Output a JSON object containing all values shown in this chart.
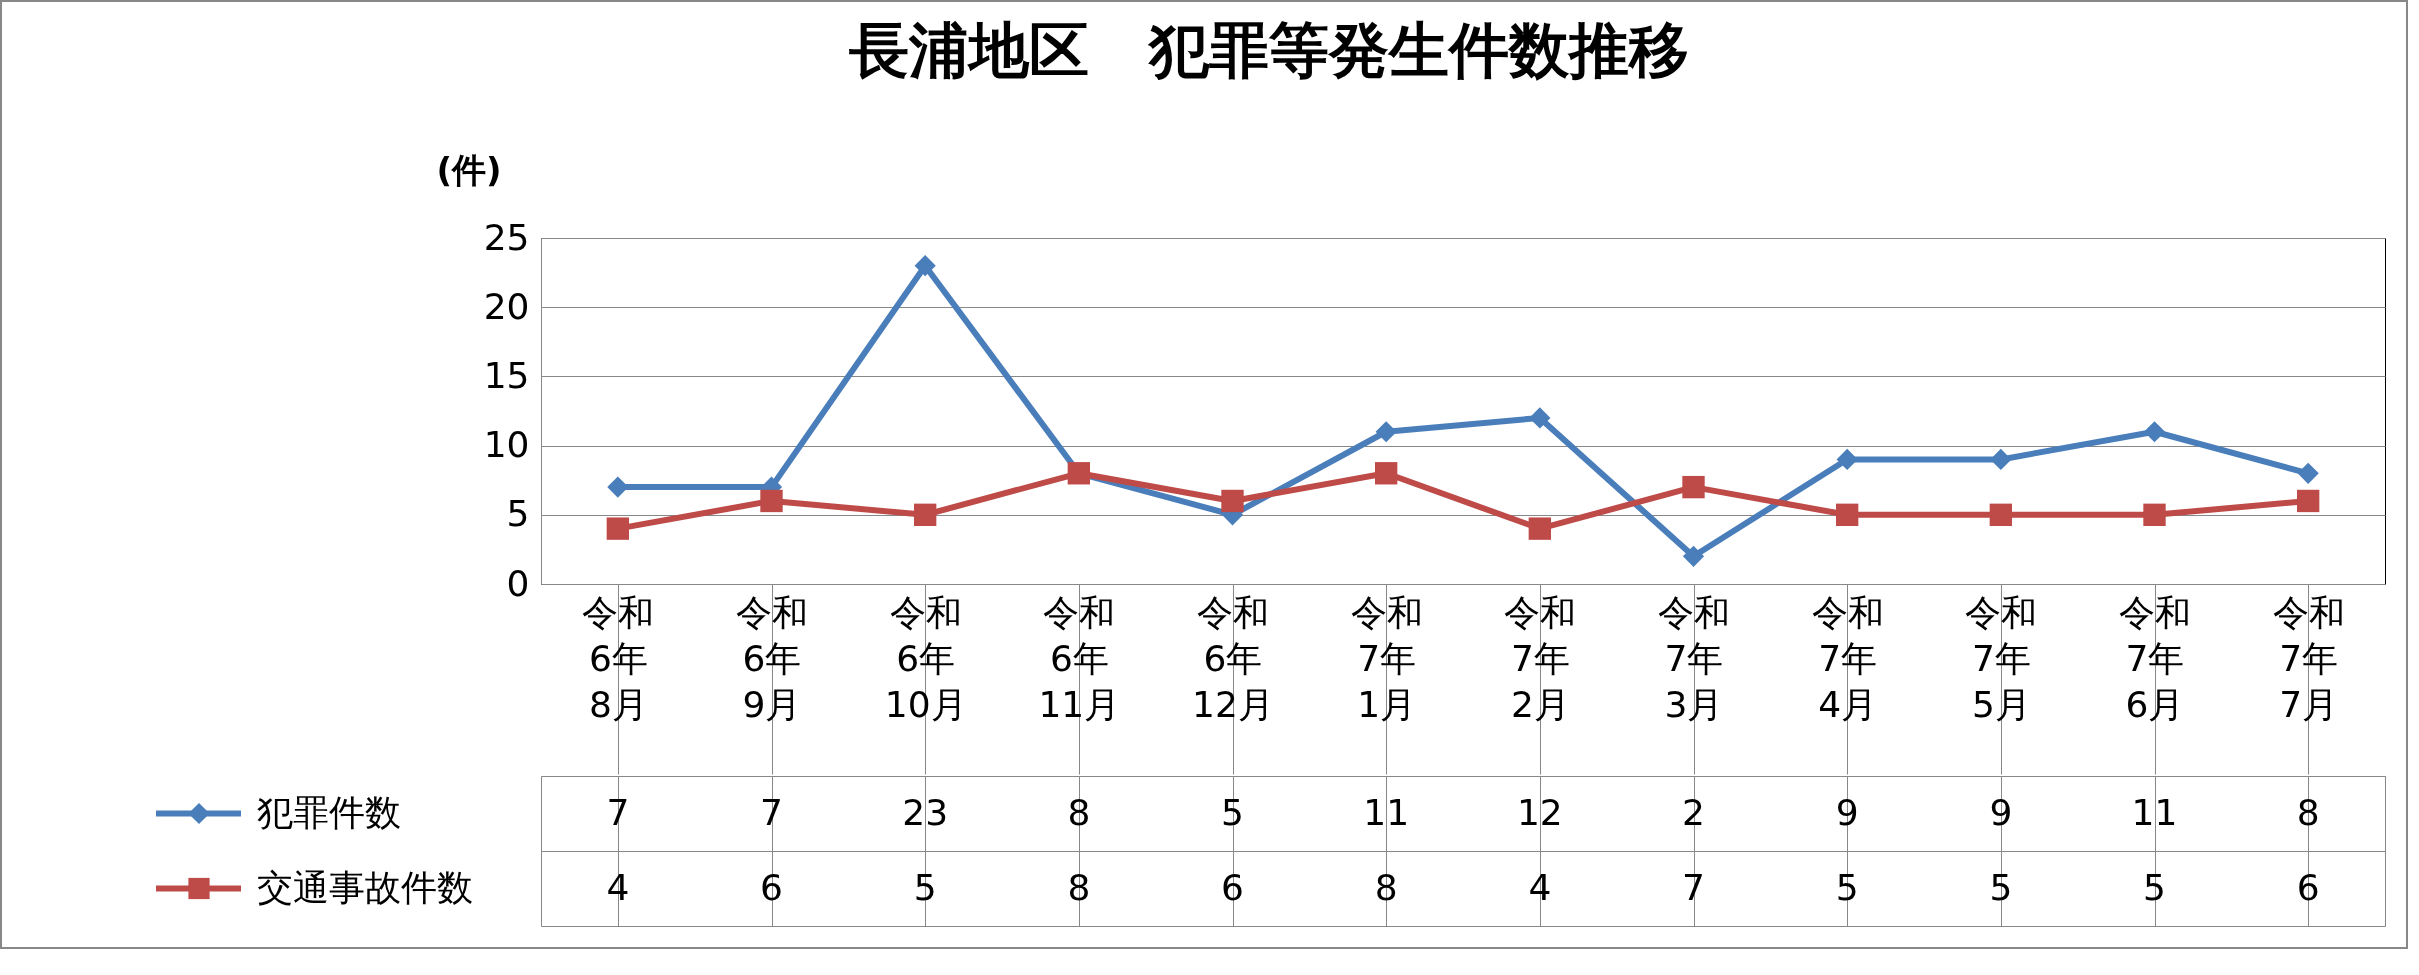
{
  "chart_data": {
    "type": "line",
    "title": "長浦地区　犯罪等発生件数推移",
    "ylabel": "(件)",
    "categories": [
      "令和\n6年\n8月",
      "令和\n6年\n9月",
      "令和\n6年\n10月",
      "令和\n6年\n11月",
      "令和\n6年\n12月",
      "令和\n7年\n1月",
      "令和\n7年\n2月",
      "令和\n7年\n3月",
      "令和\n7年\n4月",
      "令和\n7年\n5月",
      "令和\n7年\n6月",
      "令和\n7年\n7月"
    ],
    "series": [
      {
        "name": "犯罪件数",
        "color": "#4a7ebb",
        "marker": "diamond",
        "values": [
          7,
          7,
          23,
          8,
          5,
          11,
          12,
          2,
          9,
          9,
          11,
          8
        ],
        "value_labels": [
          "7",
          "7",
          "23",
          "8",
          "5",
          "11",
          "12",
          "2",
          "9",
          "9",
          "11",
          "8"
        ]
      },
      {
        "name": "交通事故件数",
        "color": "#be4b48",
        "marker": "square",
        "values": [
          4,
          6,
          5,
          8,
          6,
          8,
          4,
          7,
          5,
          5,
          5,
          6
        ],
        "value_labels": [
          "4",
          "6",
          "5",
          "8",
          "6",
          "8",
          "4",
          "7",
          "5",
          "5",
          "5",
          "6"
        ]
      }
    ],
    "ylim": [
      0,
      25
    ],
    "yticks": [
      0,
      5,
      10,
      15,
      20,
      25
    ],
    "grid": "y",
    "legend": "bottom"
  }
}
